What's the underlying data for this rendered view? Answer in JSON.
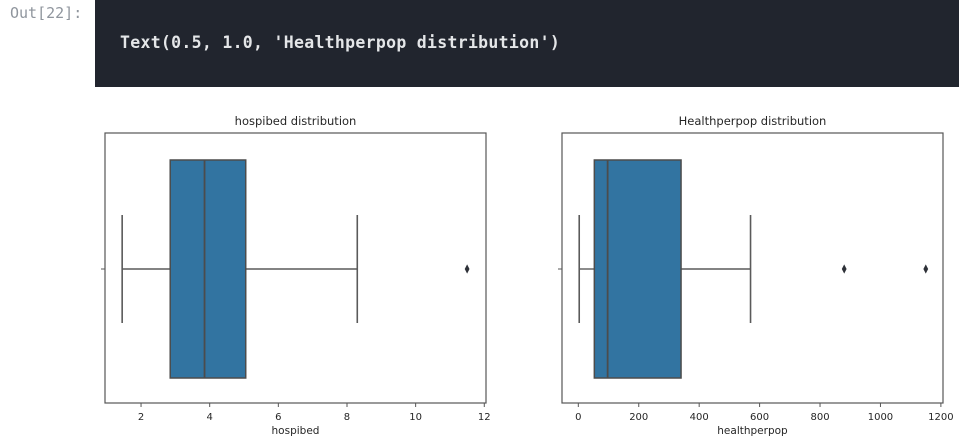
{
  "output_cell": {
    "prompt": "Out[22]:",
    "code_text": "Text(0.5, 1.0, 'Healthperpop distribution')",
    "bg_color": "#21252e",
    "text_color": "#e4e6e8",
    "prompt_color": "#8f959d"
  },
  "chart_data": [
    {
      "type": "boxplot",
      "orientation": "horizontal",
      "title": "hospibed distribution",
      "xlabel": "hospibed",
      "xlim": [
        0.95,
        12.05
      ],
      "xticks": [
        2,
        4,
        6,
        8,
        10,
        12
      ],
      "box": {
        "whisker_low": 1.45,
        "q1": 2.85,
        "median": 3.85,
        "q3": 5.05,
        "whisker_high": 8.3,
        "outliers": [
          11.5
        ]
      },
      "colors": {
        "box_fill": "#3274a1",
        "box_edge": "#4c4c4c",
        "whisker": "#5a5a5a",
        "outlier": "#2e3138",
        "spine": "#565656",
        "text": "#262626"
      }
    },
    {
      "type": "boxplot",
      "orientation": "horizontal",
      "title": "Healthperpop distribution",
      "xlabel": "healthperpop",
      "xlim": [
        -54,
        1207
      ],
      "xticks": [
        0,
        200,
        400,
        600,
        800,
        1000,
        1200
      ],
      "box": {
        "whisker_low": 3,
        "q1": 53,
        "median": 97,
        "q3": 340,
        "whisker_high": 570,
        "outliers": [
          880,
          1150
        ]
      },
      "colors": {
        "box_fill": "#3274a1",
        "box_edge": "#4c4c4c",
        "whisker": "#5a5a5a",
        "outlier": "#2e3138",
        "spine": "#565656",
        "text": "#262626"
      }
    }
  ]
}
